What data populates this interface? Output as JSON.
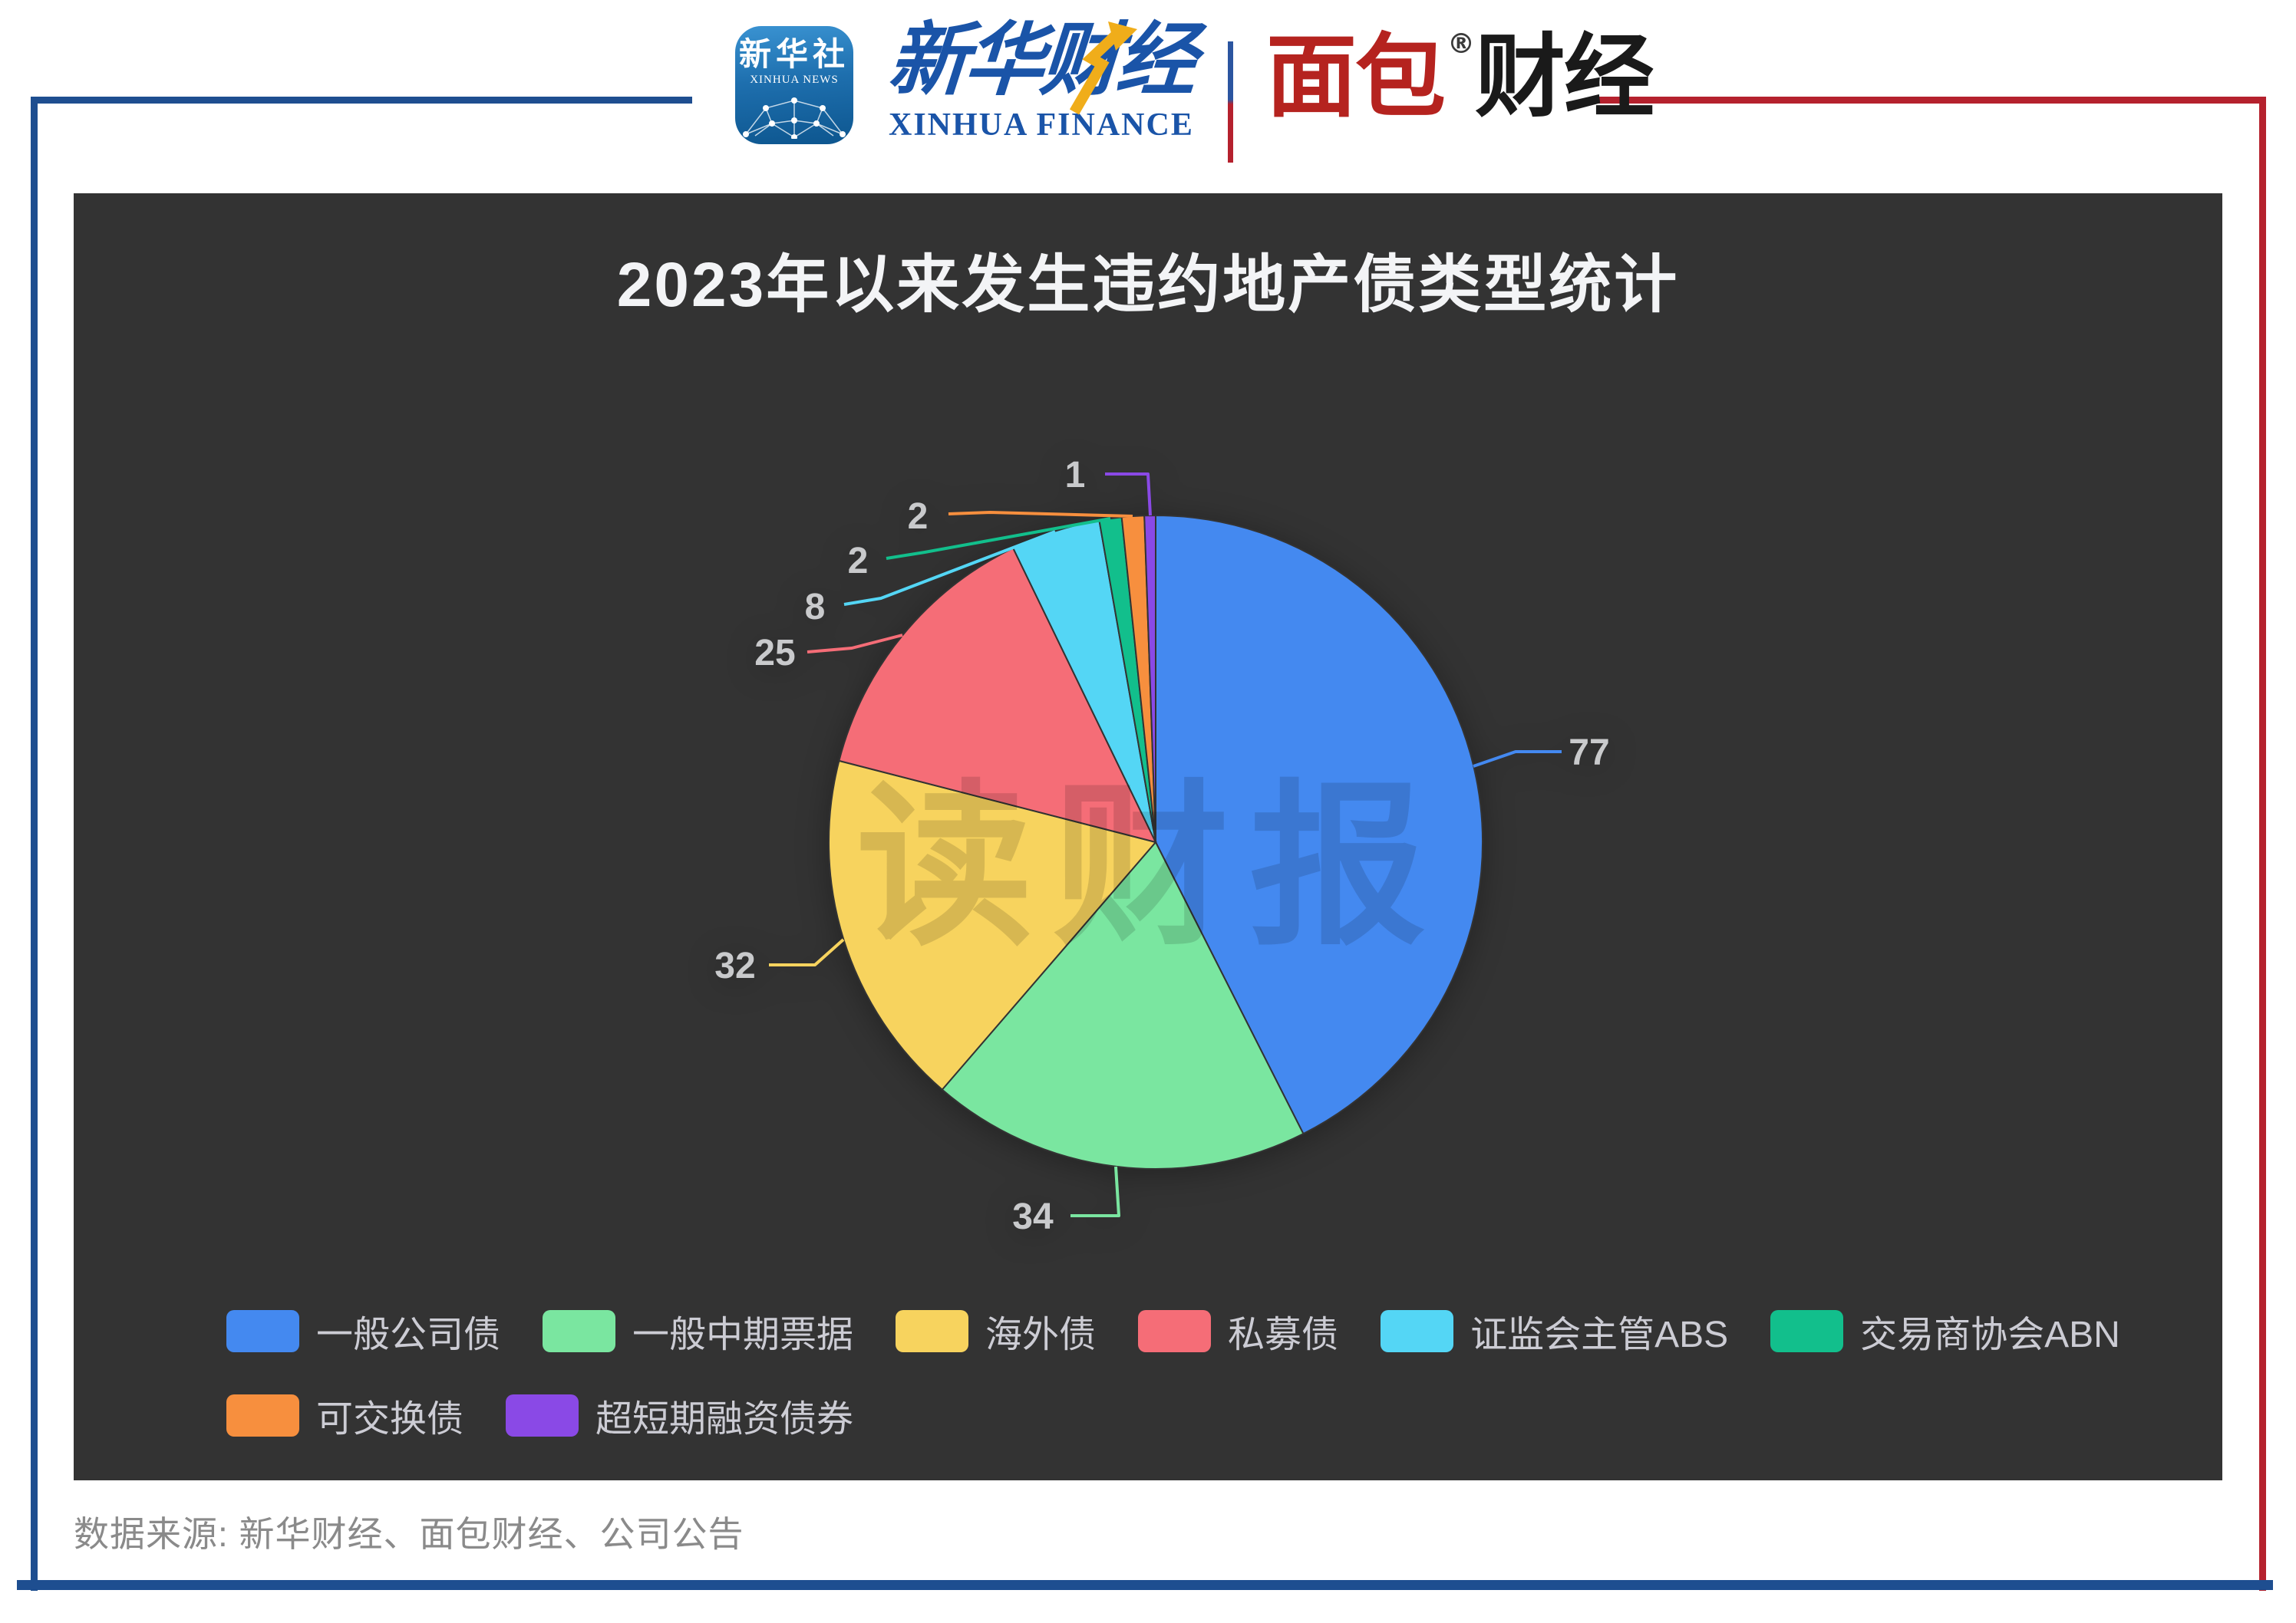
{
  "header": {
    "xinhua_news_icon": {
      "cn": "新华社",
      "en": "XINHUA NEWS"
    },
    "xinhua_finance": {
      "cn": "新华财经",
      "en": "XINHUA FINANCE"
    },
    "mianbao": {
      "cn_red": "面包",
      "cn_black": "财经",
      "reg_mark": "®"
    }
  },
  "chart_data": {
    "type": "pie",
    "title": "2023年以来发生违约地产债类型统计",
    "categories": [
      "一般公司债",
      "一般中期票据",
      "海外债",
      "私募债",
      "证监会主管ABS",
      "交易商协会ABN",
      "可交换债",
      "超短期融资债券"
    ],
    "values": [
      77,
      34,
      32,
      25,
      8,
      2,
      2,
      1
    ],
    "colors": [
      "#4489f0",
      "#7ae6a0",
      "#f7d35e",
      "#f56d77",
      "#54d6f5",
      "#12bf8c",
      "#f78f3e",
      "#8a49e6"
    ],
    "legend_position": "bottom-left, two rows",
    "label_style": "value callouts outside slices",
    "background": "#333333"
  },
  "watermark": {
    "text": "读财报"
  },
  "footer": {
    "source": "数据来源: 新华财经、面包财经、公司公告"
  },
  "frame": {
    "blue": "#1e4e90",
    "red": "#b5212d"
  }
}
